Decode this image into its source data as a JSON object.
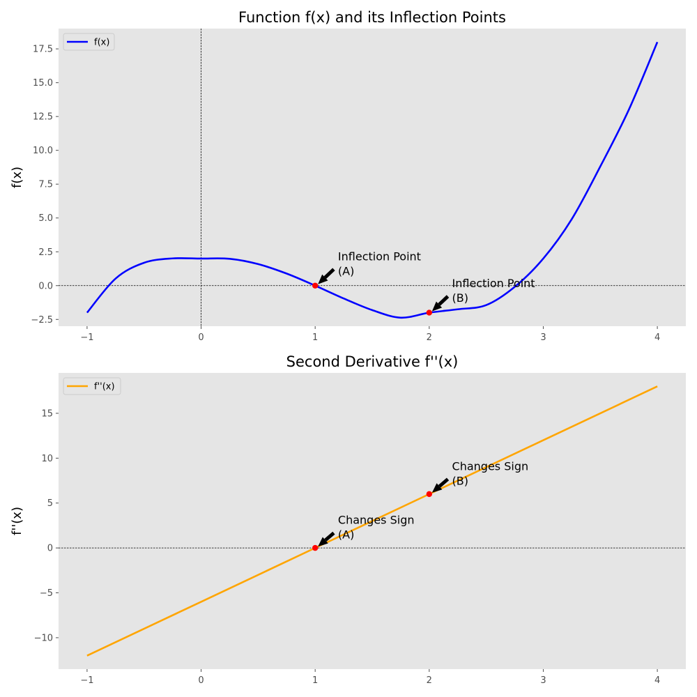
{
  "chart_data": [
    {
      "type": "line",
      "title": "Function f(x) and its Inflection Points",
      "xlabel": "",
      "ylabel": "f(x)",
      "xlim": [
        -1.25,
        4.25
      ],
      "ylim": [
        -3.0,
        19.0
      ],
      "xticks": [
        -1,
        0,
        1,
        2,
        3,
        4
      ],
      "yticks": [
        -2.5,
        0.0,
        2.5,
        5.0,
        7.5,
        10.0,
        12.5,
        15.0,
        17.5
      ],
      "ytick_labels": [
        "−2.5",
        "0.0",
        "2.5",
        "5.0",
        "7.5",
        "10.0",
        "12.5",
        "15.0",
        "17.5"
      ],
      "grid": false,
      "legend": "top-left",
      "reference_lines": {
        "y": 0,
        "x": 0
      },
      "series": [
        {
          "name": "f(x)",
          "color": "#0000ff",
          "x": [
            -1.0,
            -0.75,
            -0.5,
            -0.25,
            0.0,
            0.25,
            0.5,
            0.75,
            1.0,
            1.25,
            1.5,
            1.75,
            2.0,
            2.25,
            2.5,
            2.75,
            3.0,
            3.25,
            3.5,
            3.75,
            4.0
          ],
          "y": [
            -2.0,
            0.52,
            1.69,
            2.01,
            2.0,
            1.98,
            1.59,
            0.89,
            0.0,
            -0.95,
            -1.81,
            -2.37,
            -2.0,
            -1.75,
            -1.44,
            -0.09,
            2.0,
            4.92,
            8.81,
            13.0,
            18.0
          ]
        }
      ],
      "points": [
        {
          "x": 1,
          "y": 0,
          "color": "#ff0000"
        },
        {
          "x": 2,
          "y": -2,
          "color": "#ff0000"
        }
      ],
      "annotations": [
        {
          "lines": [
            "Inflection Point",
            "(A)"
          ],
          "x": 1,
          "y": 0,
          "text_x": 1.2,
          "text_y": 0.9
        },
        {
          "lines": [
            "Inflection Point",
            "(B)"
          ],
          "x": 2,
          "y": -2,
          "text_x": 2.2,
          "text_y": -1.1
        }
      ]
    },
    {
      "type": "line",
      "title": "Second Derivative f''(x)",
      "xlabel": "",
      "ylabel": "f''(x)",
      "xlim": [
        -1.25,
        4.25
      ],
      "ylim": [
        -13.5,
        19.5
      ],
      "xticks": [
        -1,
        0,
        1,
        2,
        3,
        4
      ],
      "yticks": [
        -10,
        -5,
        0,
        5,
        10,
        15
      ],
      "ytick_labels": [
        "−10",
        "−5",
        "0",
        "5",
        "10",
        "15"
      ],
      "grid": false,
      "legend": "top-left",
      "reference_lines": {
        "y": 0
      },
      "series": [
        {
          "name": "f''(x)",
          "color": "#ffa500",
          "x": [
            -1,
            0,
            1,
            2,
            3,
            4
          ],
          "y": [
            -12,
            -6,
            0,
            6,
            12,
            18
          ]
        }
      ],
      "points": [
        {
          "x": 1,
          "y": 0,
          "color": "#ff0000"
        },
        {
          "x": 2,
          "y": 6,
          "color": "#ff0000"
        }
      ],
      "annotations": [
        {
          "lines": [
            "Changes Sign",
            "(A)"
          ],
          "x": 1,
          "y": 0,
          "text_x": 1.2,
          "text_y": 1.2
        },
        {
          "lines": [
            "Changes Sign",
            "(B)"
          ],
          "x": 2,
          "y": 6,
          "text_x": 2.2,
          "text_y": 7.2
        }
      ]
    }
  ]
}
